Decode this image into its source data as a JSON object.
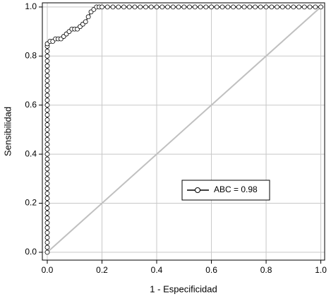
{
  "chart_data": {
    "type": "line",
    "x_label": "1 - Especificidad",
    "y_label": "Sensibilidad",
    "x": [
      0,
      0,
      0,
      0,
      0,
      0,
      0,
      0,
      0,
      0,
      0,
      0,
      0,
      0,
      0,
      0,
      0,
      0,
      0,
      0,
      0,
      0,
      0,
      0,
      0,
      0,
      0,
      0,
      0,
      0,
      0,
      0,
      0,
      0,
      0,
      0,
      0,
      0,
      0,
      0,
      0,
      0,
      0,
      0,
      0.01,
      0.02,
      0.03,
      0.04,
      0.05,
      0.06,
      0.07,
      0.08,
      0.09,
      0.1,
      0.11,
      0.12,
      0.13,
      0.14,
      0.15,
      0.16,
      0.17,
      0.18,
      0.19,
      0.2,
      0.22,
      0.24,
      0.26,
      0.28,
      0.3,
      0.32,
      0.34,
      0.36,
      0.38,
      0.4,
      0.42,
      0.44,
      0.46,
      0.48,
      0.5,
      0.52,
      0.54,
      0.56,
      0.58,
      0.6,
      0.62,
      0.64,
      0.66,
      0.68,
      0.7,
      0.72,
      0.74,
      0.76,
      0.78,
      0.8,
      0.82,
      0.84,
      0.86,
      0.88,
      0.9,
      0.92,
      0.94,
      0.96,
      0.98,
      1.0
    ],
    "series": [
      {
        "name": "ABC = 0.98",
        "color": "#000000",
        "values": [
          0,
          0.02,
          0.04,
          0.06,
          0.08,
          0.1,
          0.12,
          0.14,
          0.16,
          0.18,
          0.2,
          0.22,
          0.24,
          0.26,
          0.28,
          0.3,
          0.32,
          0.34,
          0.36,
          0.38,
          0.4,
          0.42,
          0.44,
          0.46,
          0.48,
          0.5,
          0.52,
          0.54,
          0.56,
          0.58,
          0.6,
          0.62,
          0.64,
          0.66,
          0.68,
          0.7,
          0.72,
          0.74,
          0.76,
          0.78,
          0.8,
          0.82,
          0.84,
          0.85,
          0.86,
          0.86,
          0.87,
          0.87,
          0.87,
          0.88,
          0.89,
          0.9,
          0.91,
          0.91,
          0.91,
          0.92,
          0.93,
          0.94,
          0.96,
          0.98,
          0.99,
          1,
          1,
          1,
          1,
          1,
          1,
          1,
          1,
          1,
          1,
          1,
          1,
          1,
          1,
          1,
          1,
          1,
          1,
          1,
          1,
          1,
          1,
          1,
          1,
          1,
          1,
          1,
          1,
          1,
          1,
          1,
          1,
          1,
          1,
          1,
          1,
          1,
          1,
          1,
          1,
          1,
          1,
          1
        ]
      }
    ],
    "xlim": [
      -0.018,
      1.014
    ],
    "ylim": [
      -0.032,
      1.017
    ],
    "xticks": [
      {
        "value": 0,
        "label": "0.0"
      },
      {
        "value": 0.2,
        "label": "0.2"
      },
      {
        "value": 0.4,
        "label": "0.4"
      },
      {
        "value": 0.6,
        "label": "0.6"
      },
      {
        "value": 0.8,
        "label": "0.8"
      },
      {
        "value": 1,
        "label": "1.0"
      }
    ],
    "yticks": [
      {
        "value": 0,
        "label": "0.0"
      },
      {
        "value": 0.2,
        "label": "0.2"
      },
      {
        "value": 0.4,
        "label": "0.4"
      },
      {
        "value": 0.6,
        "label": "0.6"
      },
      {
        "value": 0.8,
        "label": "0.8"
      },
      {
        "value": 1,
        "label": "1.0"
      }
    ],
    "grid": true,
    "grid_color": "#c8c8c8",
    "reference_line": true,
    "reference_color": "#c0c0c0",
    "legend": "lower right"
  }
}
